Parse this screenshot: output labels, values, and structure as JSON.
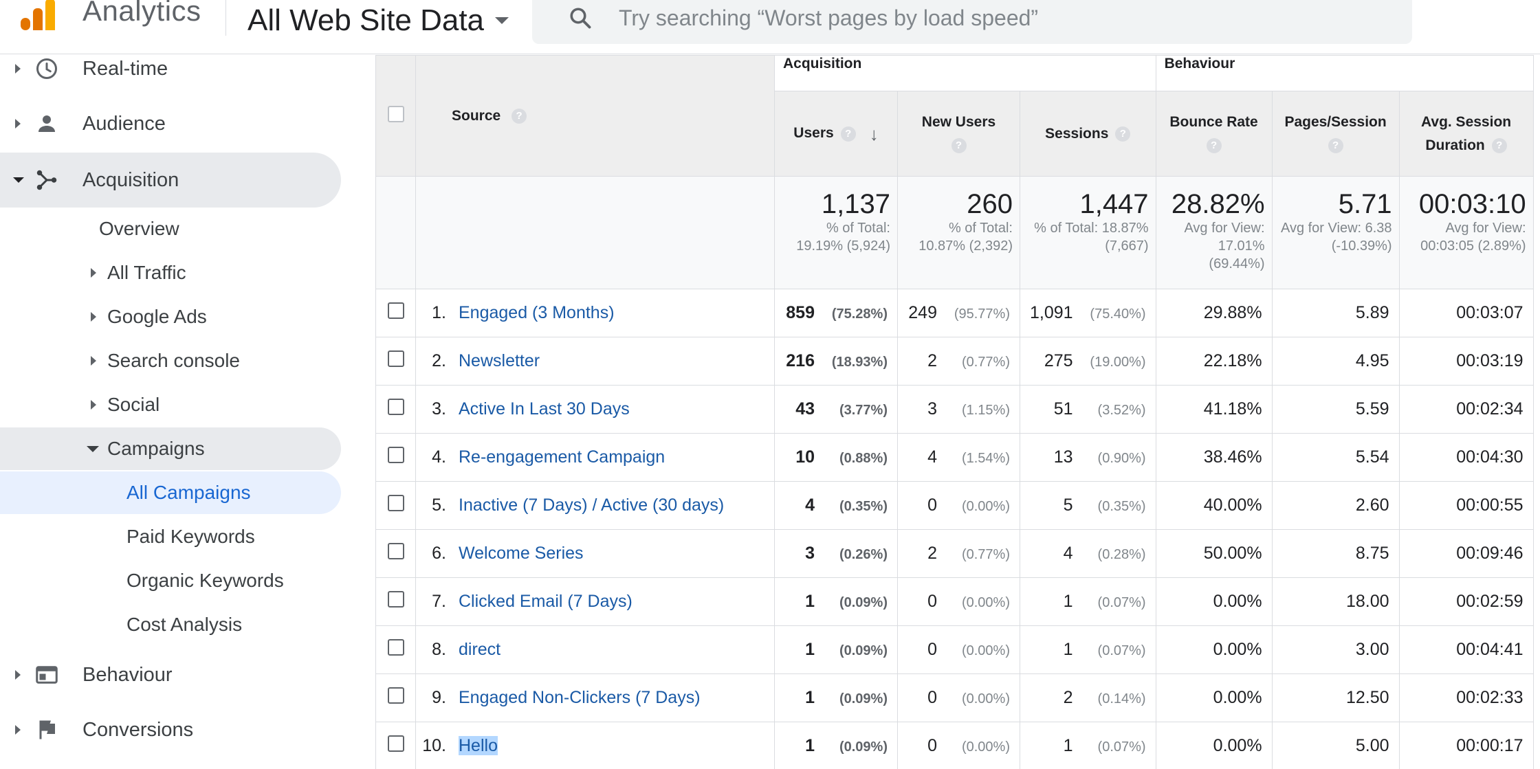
{
  "header": {
    "app_title": "Analytics",
    "property": "All Web Site Data",
    "search_placeholder": "Try searching “Worst pages by load speed”"
  },
  "sidebar": {
    "items": [
      {
        "label": "Real-time",
        "icon": "clock-icon"
      },
      {
        "label": "Audience",
        "icon": "person-icon"
      },
      {
        "label": "Acquisition",
        "icon": "acquisition-icon"
      },
      {
        "label": "Behaviour",
        "icon": "behaviour-icon"
      },
      {
        "label": "Conversions",
        "icon": "flag-icon"
      }
    ],
    "acquisition_children": {
      "overview": "Overview",
      "all_traffic": "All Traffic",
      "google_ads": "Google Ads",
      "search_console": "Search console",
      "social": "Social",
      "campaigns": "Campaigns"
    },
    "campaign_children": {
      "all_campaigns": "All Campaigns",
      "paid_keywords": "Paid Keywords",
      "organic_keywords": "Organic Keywords",
      "cost_analysis": "Cost Analysis"
    }
  },
  "table": {
    "groups": {
      "acquisition": "Acquisition",
      "behaviour": "Behaviour"
    },
    "headers": {
      "source": "Source",
      "users": "Users",
      "new_users": "New Users",
      "sessions": "Sessions",
      "bounce_rate": "Bounce Rate",
      "pages_session": "Pages/Session",
      "avg_duration_1": "Avg. Session",
      "avg_duration_2": "Duration"
    },
    "totals": {
      "users": {
        "value": "1,137",
        "sub": "% of Total: 19.19% (5,924)"
      },
      "new_users": {
        "value": "260",
        "sub": "% of Total: 10.87% (2,392)"
      },
      "sessions": {
        "value": "1,447",
        "sub": "% of Total: 18.87% (7,667)"
      },
      "bounce_rate": {
        "value": "28.82%",
        "sub": "Avg for View: 17.01% (69.44%)"
      },
      "pages_session": {
        "value": "5.71",
        "sub": "Avg for View: 6.38 (-10.39%)"
      },
      "avg_duration": {
        "value": "00:03:10",
        "sub": "Avg for View: 00:03:05 (2.89%)"
      }
    },
    "rows": [
      {
        "idx": "1.",
        "source": "Engaged (3 Months)",
        "users": "859",
        "users_pct": "(75.28%)",
        "new_users": "249",
        "new_users_pct": "(95.77%)",
        "sessions": "1,091",
        "sessions_pct": "(75.40%)",
        "bounce": "29.88%",
        "pages": "5.89",
        "duration": "00:03:07"
      },
      {
        "idx": "2.",
        "source": "Newsletter",
        "users": "216",
        "users_pct": "(18.93%)",
        "new_users": "2",
        "new_users_pct": "(0.77%)",
        "sessions": "275",
        "sessions_pct": "(19.00%)",
        "bounce": "22.18%",
        "pages": "4.95",
        "duration": "00:03:19"
      },
      {
        "idx": "3.",
        "source": "Active In Last 30 Days",
        "users": "43",
        "users_pct": "(3.77%)",
        "new_users": "3",
        "new_users_pct": "(1.15%)",
        "sessions": "51",
        "sessions_pct": "(3.52%)",
        "bounce": "41.18%",
        "pages": "5.59",
        "duration": "00:02:34"
      },
      {
        "idx": "4.",
        "source": "Re-engagement Campaign",
        "users": "10",
        "users_pct": "(0.88%)",
        "new_users": "4",
        "new_users_pct": "(1.54%)",
        "sessions": "13",
        "sessions_pct": "(0.90%)",
        "bounce": "38.46%",
        "pages": "5.54",
        "duration": "00:04:30"
      },
      {
        "idx": "5.",
        "source": "Inactive (7 Days) / Active (30 days)",
        "users": "4",
        "users_pct": "(0.35%)",
        "new_users": "0",
        "new_users_pct": "(0.00%)",
        "sessions": "5",
        "sessions_pct": "(0.35%)",
        "bounce": "40.00%",
        "pages": "2.60",
        "duration": "00:00:55"
      },
      {
        "idx": "6.",
        "source": "Welcome Series",
        "users": "3",
        "users_pct": "(0.26%)",
        "new_users": "2",
        "new_users_pct": "(0.77%)",
        "sessions": "4",
        "sessions_pct": "(0.28%)",
        "bounce": "50.00%",
        "pages": "8.75",
        "duration": "00:09:46"
      },
      {
        "idx": "7.",
        "source": "Clicked Email (7 Days)",
        "users": "1",
        "users_pct": "(0.09%)",
        "new_users": "0",
        "new_users_pct": "(0.00%)",
        "sessions": "1",
        "sessions_pct": "(0.07%)",
        "bounce": "0.00%",
        "pages": "18.00",
        "duration": "00:02:59"
      },
      {
        "idx": "8.",
        "source": "direct",
        "users": "1",
        "users_pct": "(0.09%)",
        "new_users": "0",
        "new_users_pct": "(0.00%)",
        "sessions": "1",
        "sessions_pct": "(0.07%)",
        "bounce": "0.00%",
        "pages": "3.00",
        "duration": "00:04:41"
      },
      {
        "idx": "9.",
        "source": "Engaged Non-Clickers (7 Days)",
        "users": "1",
        "users_pct": "(0.09%)",
        "new_users": "0",
        "new_users_pct": "(0.00%)",
        "sessions": "2",
        "sessions_pct": "(0.14%)",
        "bounce": "0.00%",
        "pages": "12.50",
        "duration": "00:02:33"
      },
      {
        "idx": "10.",
        "source": "Hello",
        "users": "1",
        "users_pct": "(0.09%)",
        "new_users": "0",
        "new_users_pct": "(0.00%)",
        "sessions": "1",
        "sessions_pct": "(0.07%)",
        "bounce": "0.00%",
        "pages": "5.00",
        "duration": "00:00:17"
      }
    ]
  }
}
